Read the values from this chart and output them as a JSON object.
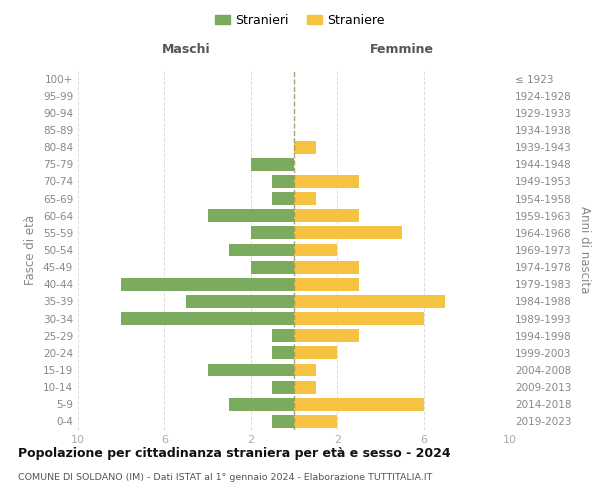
{
  "age_groups": [
    "0-4",
    "5-9",
    "10-14",
    "15-19",
    "20-24",
    "25-29",
    "30-34",
    "35-39",
    "40-44",
    "45-49",
    "50-54",
    "55-59",
    "60-64",
    "65-69",
    "70-74",
    "75-79",
    "80-84",
    "85-89",
    "90-94",
    "95-99",
    "100+"
  ],
  "birth_years": [
    "2019-2023",
    "2014-2018",
    "2009-2013",
    "2004-2008",
    "1999-2003",
    "1994-1998",
    "1989-1993",
    "1984-1988",
    "1979-1983",
    "1974-1978",
    "1969-1973",
    "1964-1968",
    "1959-1963",
    "1954-1958",
    "1949-1953",
    "1944-1948",
    "1939-1943",
    "1934-1938",
    "1929-1933",
    "1924-1928",
    "≤ 1923"
  ],
  "males": [
    1,
    3,
    1,
    4,
    1,
    1,
    8,
    5,
    8,
    2,
    3,
    2,
    4,
    1,
    1,
    2,
    0,
    0,
    0,
    0,
    0
  ],
  "females": [
    2,
    6,
    1,
    1,
    2,
    3,
    6,
    7,
    3,
    3,
    2,
    5,
    3,
    1,
    3,
    0,
    1,
    0,
    0,
    0,
    0
  ],
  "male_color": "#7aab5e",
  "female_color": "#f5c242",
  "center_line_color": "#999966",
  "title": "Popolazione per cittadinanza straniera per età e sesso - 2024",
  "subtitle": "COMUNE DI SOLDANO (IM) - Dati ISTAT al 1° gennaio 2024 - Elaborazione TUTTITALIA.IT",
  "xlabel_left": "Maschi",
  "xlabel_right": "Femmine",
  "ylabel_left": "Fasce di età",
  "ylabel_right": "Anni di nascita",
  "legend_male": "Stranieri",
  "legend_female": "Straniere",
  "xlim": 10,
  "background_color": "#ffffff",
  "grid_color": "#dddddd",
  "tick_color": "#aaaaaa",
  "label_color": "#888888",
  "header_color": "#555555"
}
